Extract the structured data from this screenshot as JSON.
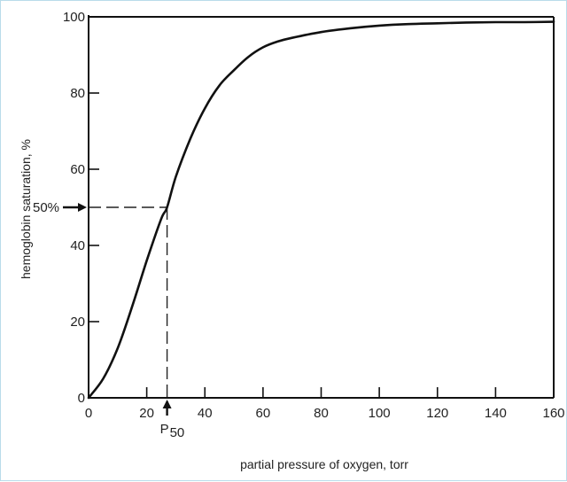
{
  "chart_data": {
    "type": "line",
    "title": "",
    "xlabel": "partial pressure of oxygen, torr",
    "ylabel": "hemoglobin saturation, %",
    "xlim": [
      0,
      160
    ],
    "ylim": [
      0,
      100
    ],
    "x_ticks": [
      0,
      20,
      40,
      60,
      80,
      100,
      120,
      140,
      160
    ],
    "y_ticks": [
      0,
      20,
      40,
      60,
      80,
      100
    ],
    "x_tick_labels": [
      "0",
      "20",
      "40",
      "60",
      "80",
      "100",
      "120",
      "140",
      "160"
    ],
    "y_tick_labels": [
      "0",
      "20",
      "40",
      "60",
      "80",
      "100"
    ],
    "grid": false,
    "series": [
      {
        "x": [
          0,
          5,
          10,
          15,
          20,
          25,
          27,
          30,
          35,
          40,
          45,
          50,
          55,
          60,
          65,
          70,
          80,
          90,
          100,
          110,
          120,
          130,
          140,
          150,
          160
        ],
        "y": [
          0,
          5,
          13,
          24,
          36,
          47,
          50,
          58,
          68,
          76,
          82,
          86,
          89.5,
          92,
          93.5,
          94.5,
          96,
          97,
          97.7,
          98.1,
          98.3,
          98.5,
          98.6,
          98.6,
          98.7
        ]
      }
    ],
    "annotations": {
      "p50_label": "P",
      "p50_subscript": "50",
      "p50_x": 27,
      "fifty_percent_label": "50%",
      "fifty_percent_y": 50
    }
  }
}
